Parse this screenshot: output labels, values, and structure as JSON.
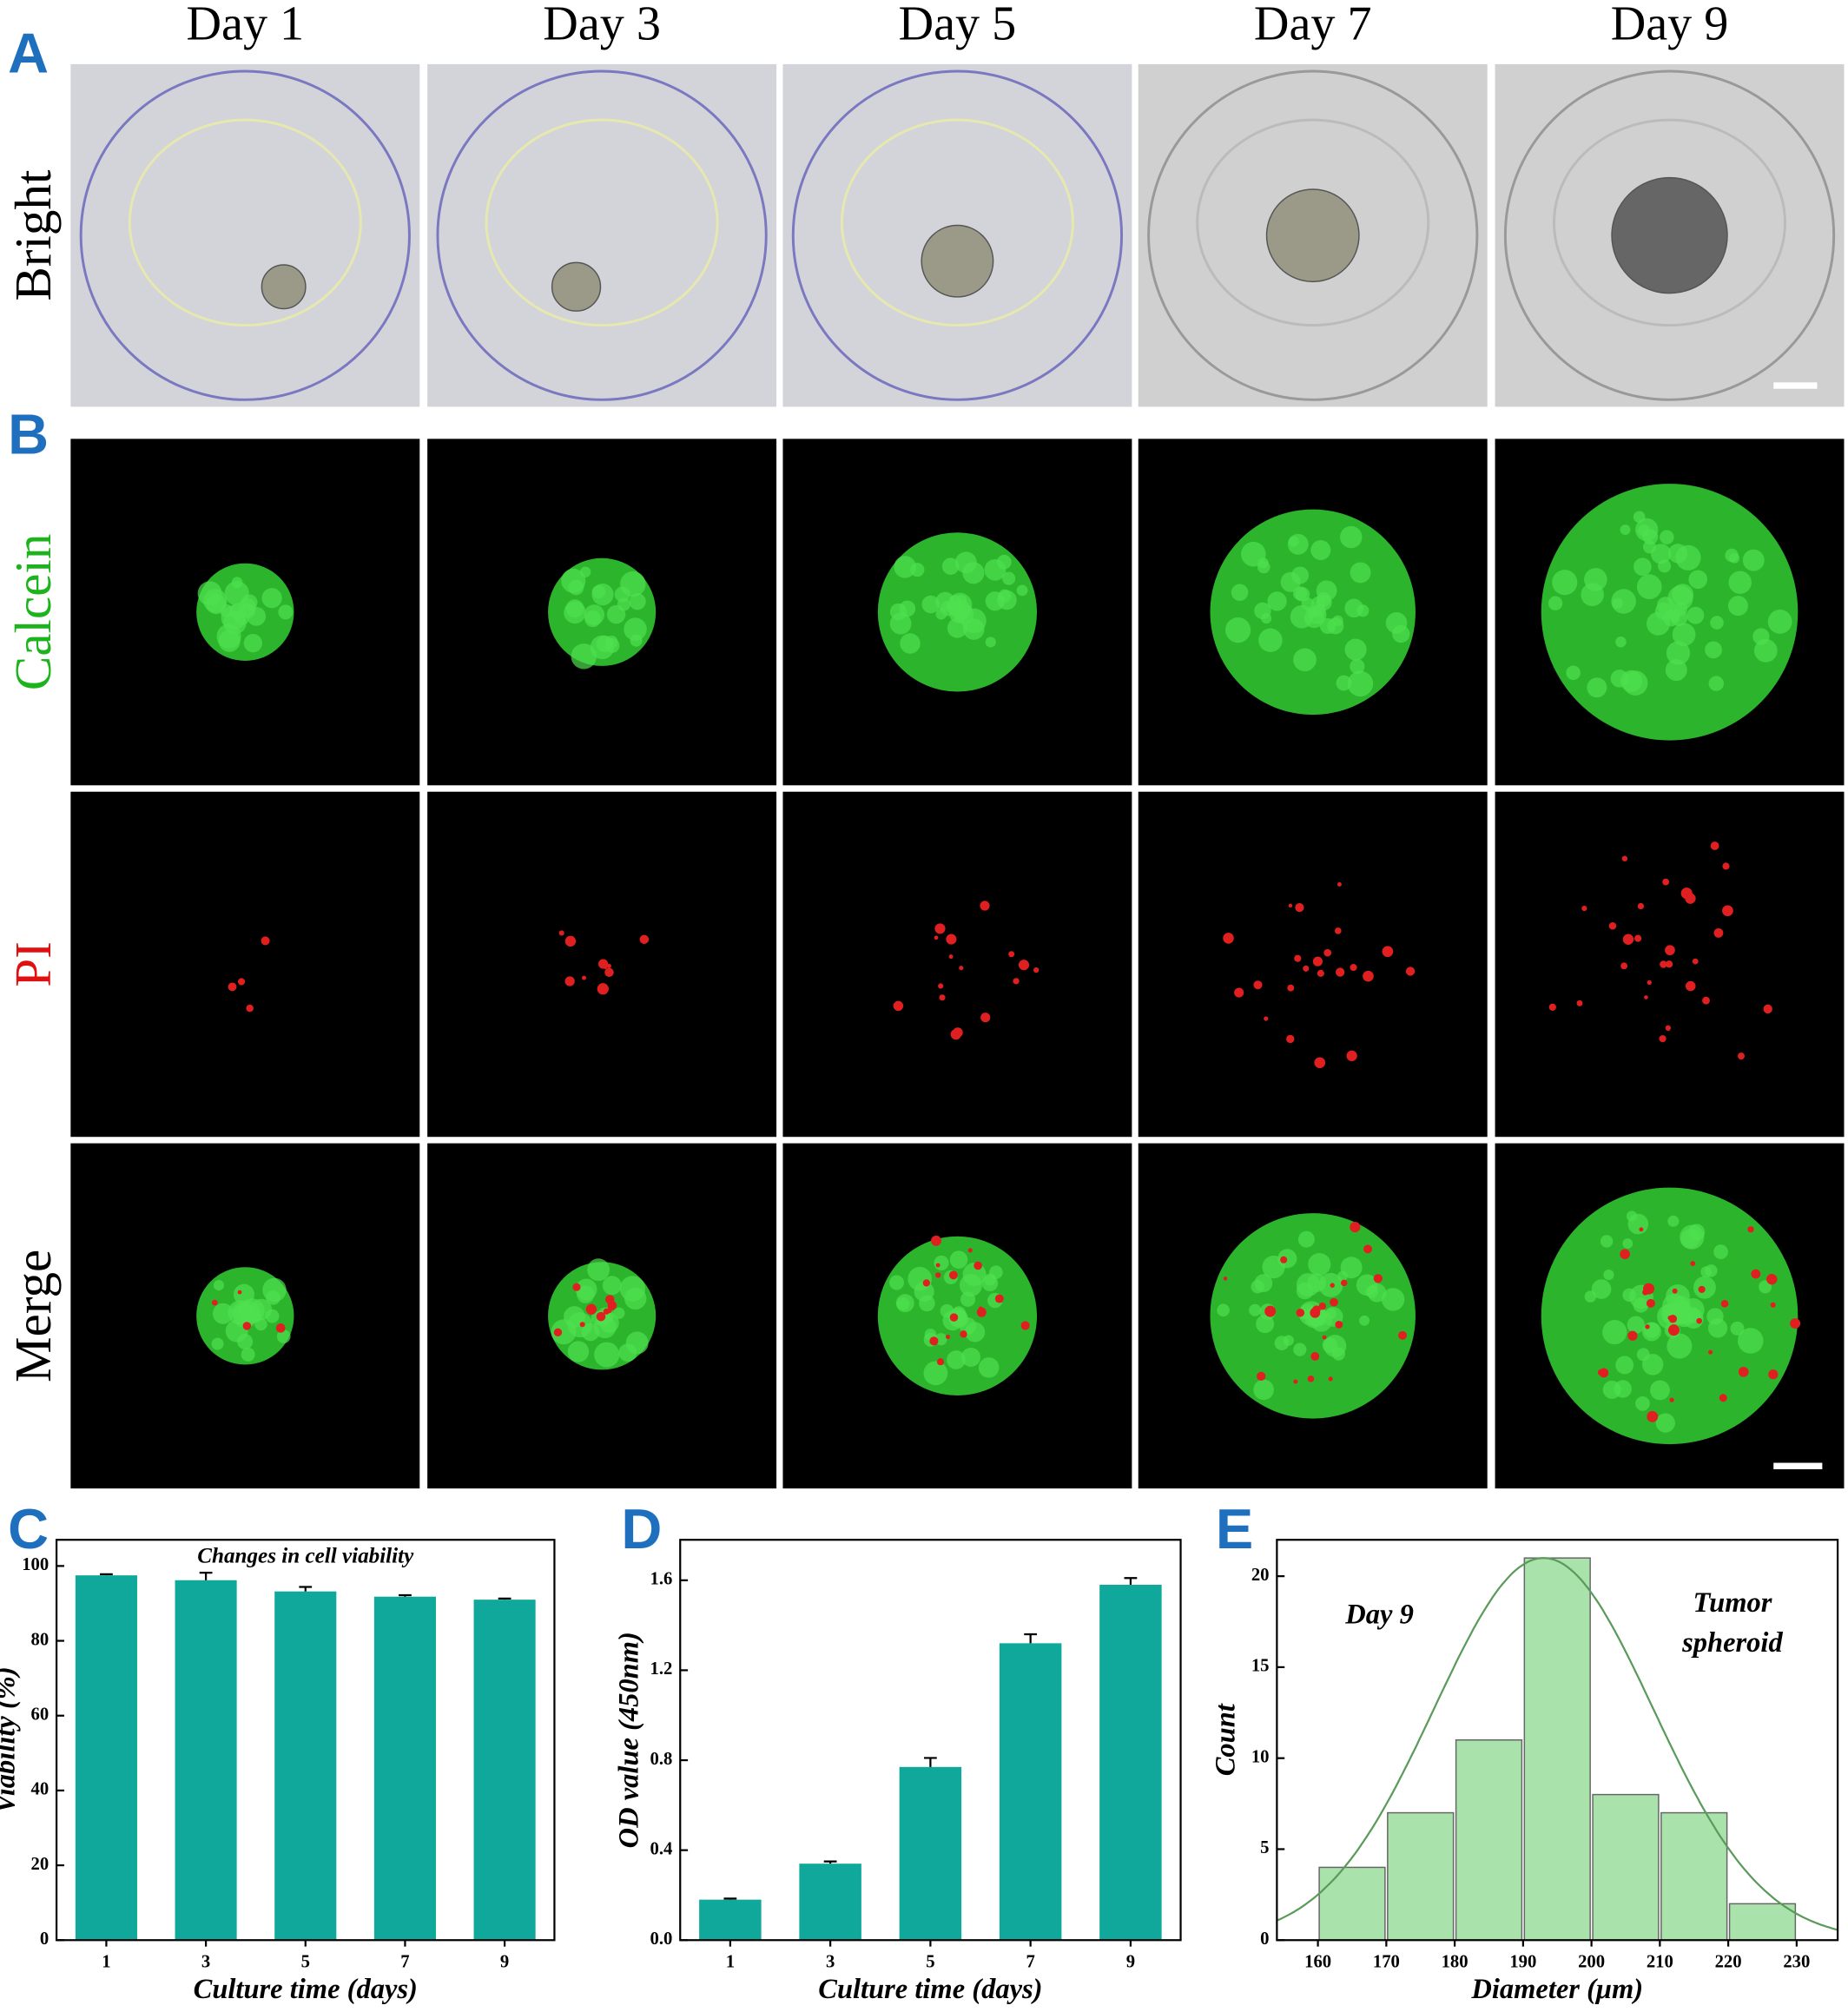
{
  "panels": [
    "A",
    "B",
    "C",
    "D",
    "E"
  ],
  "columns": [
    "Day 1",
    "Day 3",
    "Day 5",
    "Day 7",
    "Day 9"
  ],
  "rows": [
    "Bright",
    "Calcein",
    "PI",
    "Merge"
  ],
  "chart_data": [
    {
      "type": "bar",
      "title": "Changes in cell viability",
      "categories": [
        "1",
        "3",
        "5",
        "7",
        "9"
      ],
      "values": [
        97.5,
        96.2,
        93.2,
        91.8,
        91.0
      ],
      "errors": [
        0.3,
        2.0,
        1.2,
        0.4,
        0.3
      ],
      "color": "#0fa89a",
      "ylim": [
        0,
        107
      ],
      "yticks": [
        0,
        20,
        40,
        60,
        80,
        100
      ],
      "xlabel": "Culture time (days)",
      "ylabel": "Viability (%)"
    },
    {
      "type": "bar",
      "categories": [
        "1",
        "3",
        "5",
        "7",
        "9"
      ],
      "values": [
        0.18,
        0.34,
        0.77,
        1.32,
        1.58
      ],
      "errors": [
        0.005,
        0.01,
        0.04,
        0.04,
        0.03
      ],
      "color": "#0fa89a",
      "ylim": [
        0,
        1.78
      ],
      "yticks": [
        {
          "value": 0,
          "label": "0.0"
        },
        0.4,
        0.8,
        1.2,
        1.6
      ],
      "xlabel": "Culture time (days)",
      "ylabel": "OD value (450nm)"
    },
    {
      "type": "histogram",
      "bins": [
        160,
        170,
        180,
        190,
        200,
        210,
        220,
        230
      ],
      "values": [
        4,
        7,
        11,
        21,
        8,
        7,
        2
      ],
      "color": "#a9e2ab",
      "edge_color": "#666666",
      "curve_color": "#5a9a5a",
      "fit": {
        "mean": 193,
        "sd": 16,
        "peak": 21
      },
      "xlim": [
        154,
        236
      ],
      "xticks": [
        160,
        170,
        180,
        190,
        200,
        210,
        220,
        230
      ],
      "ylim": [
        0,
        22
      ],
      "yticks": [
        0,
        5,
        10,
        15,
        20
      ],
      "annotations": [
        "Day 9",
        "Tumor",
        "spheroid"
      ],
      "xlabel": "Diameter (μm)",
      "ylabel": "Count"
    }
  ]
}
